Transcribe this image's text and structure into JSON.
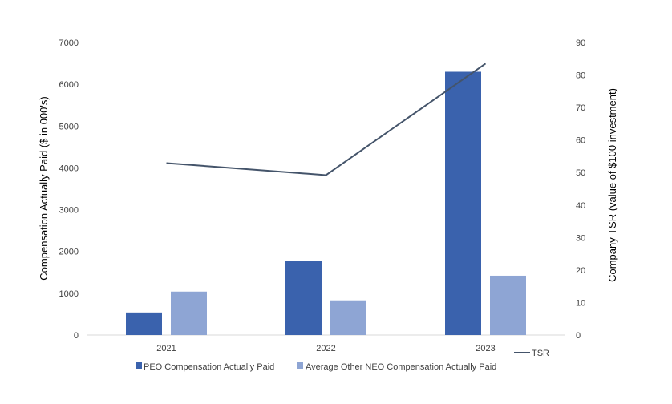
{
  "chart_data": {
    "type": "bar",
    "categories": [
      "2021",
      "2022",
      "2023"
    ],
    "series": [
      {
        "name": "PEO Compensation Actually Paid",
        "values": [
          540,
          1770,
          6300
        ],
        "color": "#3a62ad",
        "axis": "left",
        "kind": "bar"
      },
      {
        "name": "Average Other NEO Compensation Actually Paid",
        "values": [
          1040,
          830,
          1420
        ],
        "color": "#8ea5d4",
        "axis": "left",
        "kind": "bar"
      },
      {
        "name": "TSR",
        "values": [
          52.9,
          49.2,
          83.5
        ],
        "color": "#44546a",
        "axis": "right",
        "kind": "line"
      }
    ],
    "ylabel": "Compensation Actually Paid ($ in 000's)",
    "ylabel_right": "Company TSR (value of $100 investment)",
    "ylim": [
      0,
      7000
    ],
    "ylim_right": [
      0,
      90
    ],
    "yticks": [
      "0",
      "1000",
      "2000",
      "3000",
      "4000",
      "5000",
      "6000",
      "7000"
    ],
    "yticks_right": [
      "0",
      "10",
      "20",
      "30",
      "40",
      "50",
      "60",
      "70",
      "80",
      "90"
    ],
    "grid": false,
    "legend_position": "bottom"
  }
}
